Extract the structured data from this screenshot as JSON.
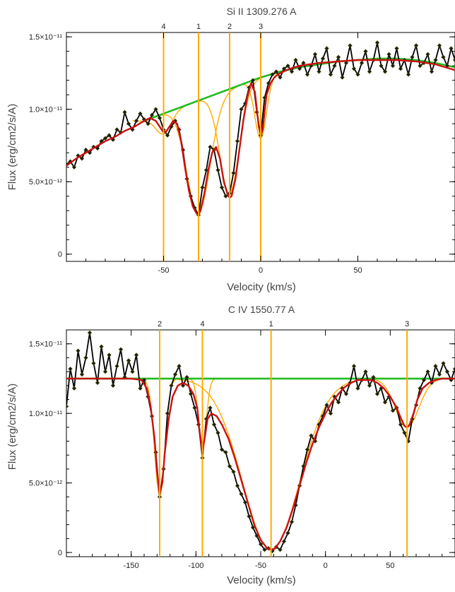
{
  "chart_data": [
    {
      "type": "line",
      "title": "Si II 1309.276 A",
      "xlabel": "Velocity (km/s)",
      "ylabel": "Flux (erg/cm2/s/A)",
      "xlim": [
        -100,
        100
      ],
      "ylim": [
        -5e-13,
        1.53e-11
      ],
      "x_ticks": [
        -50,
        0,
        50
      ],
      "x_tick_labels": [
        "-50",
        "0",
        "50"
      ],
      "y_ticks": [
        0,
        5e-12,
        1e-11,
        1.5e-11
      ],
      "y_tick_labels": [
        "0",
        "5.0×10⁻¹²",
        "1.0×10⁻¹¹",
        "1.5×10⁻¹¹"
      ],
      "components": [
        {
          "label": "4",
          "v": -50
        },
        {
          "label": "1",
          "v": -32
        },
        {
          "label": "2",
          "v": -16
        },
        {
          "label": "3",
          "v": 0
        }
      ],
      "series": [
        {
          "role": "observed",
          "color": "#000000",
          "x": [
            -100,
            -98,
            -96,
            -94,
            -92,
            -90,
            -88,
            -86,
            -84,
            -82,
            -80,
            -78,
            -76,
            -74,
            -72,
            -70,
            -68,
            -66,
            -64,
            -62,
            -60,
            -58,
            -56,
            -54,
            -52,
            -50,
            -48,
            -46,
            -44,
            -42,
            -40,
            -38,
            -36,
            -34,
            -32,
            -30,
            -28,
            -26,
            -24,
            -22,
            -20,
            -18,
            -16,
            -14,
            -12,
            -10,
            -8,
            -6,
            -4,
            -2,
            0,
            2,
            4,
            6,
            8,
            10,
            12,
            14,
            16,
            18,
            20,
            22,
            24,
            26,
            28,
            30,
            32,
            34,
            36,
            38,
            40,
            42,
            44,
            46,
            48,
            50,
            52,
            54,
            56,
            58,
            60,
            62,
            64,
            66,
            68,
            70,
            72,
            74,
            76,
            78,
            80,
            82,
            84,
            86,
            88,
            90,
            92,
            94,
            96,
            98,
            100
          ],
          "y": [
            6.2e-12,
            6.4e-12,
            6e-12,
            6.8e-12,
            6.6e-12,
            7.2e-12,
            7e-12,
            7.4e-12,
            7.3e-12,
            7.8e-12,
            8e-12,
            8.2e-12,
            7.9e-12,
            8.6e-12,
            8.4e-12,
            9.8e-12,
            9e-12,
            8.6e-12,
            9.2e-12,
            9.7e-12,
            9.3e-12,
            9e-12,
            9.6e-12,
            1e-11,
            9.4e-12,
            8.6e-12,
            8.2e-12,
            8.8e-12,
            9.2e-12,
            8.6e-12,
            7.2e-12,
            5.2e-12,
            4e-12,
            3.2e-12,
            2.7e-12,
            4.6e-12,
            5.8e-12,
            7.4e-12,
            7.2e-12,
            5.8e-12,
            4.6e-12,
            4e-12,
            4.2e-12,
            5.6e-12,
            7.8e-12,
            1e-11,
            1.04e-11,
            1.15e-11,
            1.2e-11,
            9.8e-12,
            8.2e-12,
            1.08e-11,
            1.18e-11,
            1.24e-11,
            1.26e-11,
            1.22e-11,
            1.28e-11,
            1.3e-11,
            1.26e-11,
            1.34e-11,
            1.28e-11,
            1.32e-11,
            1.24e-11,
            1.3e-11,
            1.38e-11,
            1.26e-11,
            1.35e-11,
            1.42e-11,
            1.24e-11,
            1.3e-11,
            1.36e-11,
            1.22e-11,
            1.32e-11,
            1.44e-11,
            1.28e-11,
            1.24e-11,
            1.32e-11,
            1.4e-11,
            1.26e-11,
            1.34e-11,
            1.46e-11,
            1.3e-11,
            1.26e-11,
            1.38e-11,
            1.3e-11,
            1.42e-11,
            1.28e-11,
            1.34e-11,
            1.24e-11,
            1.36e-11,
            1.44e-11,
            1.3e-11,
            1.32e-11,
            1.38e-11,
            1.26e-11,
            1.34e-11,
            1.44e-11,
            1.36e-11,
            1.3e-11,
            1.42e-11,
            1.34e-11
          ]
        },
        {
          "role": "continuum",
          "color": "#22bb22",
          "x": [
            -60,
            -50,
            -40,
            -30,
            -20,
            -10,
            0,
            10,
            20,
            30,
            40,
            50,
            60,
            70,
            80,
            90,
            100
          ],
          "y": [
            9.2e-12,
            9.7e-12,
            1.02e-11,
            1.07e-11,
            1.12e-11,
            1.17e-11,
            1.22e-11,
            1.26e-11,
            1.29e-11,
            1.31e-11,
            1.33e-11,
            1.34e-11,
            1.35e-11,
            1.35e-11,
            1.34e-11,
            1.32e-11,
            1.29e-11
          ]
        },
        {
          "role": "model",
          "color": "#cc1111",
          "x": [
            -100,
            -95,
            -90,
            -85,
            -80,
            -75,
            -70,
            -65,
            -60,
            -57,
            -54,
            -51,
            -50,
            -49,
            -47,
            -45,
            -43,
            -41,
            -39,
            -37,
            -35,
            -33,
            -32,
            -31,
            -29,
            -27,
            -25,
            -23,
            -21,
            -19,
            -17,
            -16,
            -15,
            -13,
            -11,
            -9,
            -7,
            -5,
            -3,
            -2,
            -1,
            0,
            1,
            2,
            3,
            5,
            7,
            10,
            15,
            20,
            25,
            30,
            40,
            50,
            60,
            70,
            80,
            90,
            100
          ],
          "y": [
            6.1e-12,
            6.6e-12,
            7e-12,
            7.4e-12,
            7.8e-12,
            8.1e-12,
            8.5e-12,
            8.8e-12,
            9.2e-12,
            9.4e-12,
            9.2e-12,
            8.6e-12,
            8.4e-12,
            8.4e-12,
            8.8e-12,
            9.2e-12,
            9e-12,
            7.8e-12,
            6e-12,
            4.4e-12,
            3.3e-12,
            2.8e-12,
            2.7e-12,
            3e-12,
            4.2e-12,
            5.8e-12,
            7e-12,
            7.4e-12,
            6.6e-12,
            5e-12,
            4.1e-12,
            3.9e-12,
            4e-12,
            5.2e-12,
            7.2e-12,
            9.2e-12,
            1.08e-11,
            1.18e-11,
            1.12e-11,
            1e-11,
            8.8e-12,
            8.2e-12,
            8.6e-12,
            9.8e-12,
            1.1e-11,
            1.18e-11,
            1.22e-11,
            1.25e-11,
            1.28e-11,
            1.3e-11,
            1.31e-11,
            1.32e-11,
            1.33e-11,
            1.34e-11,
            1.34e-11,
            1.34e-11,
            1.33e-11,
            1.31e-11,
            1.27e-11
          ]
        },
        {
          "role": "component-profiles",
          "color": "#ffaa00",
          "components": [
            {
              "center": -50,
              "depth": 1.4e-12,
              "width": 4
            },
            {
              "center": -32,
              "depth": 7.8e-12,
              "width": 6
            },
            {
              "center": -16,
              "depth": 7.2e-12,
              "width": 5
            },
            {
              "center": 0,
              "depth": 4.2e-12,
              "width": 3
            }
          ]
        }
      ]
    },
    {
      "type": "line",
      "title": "C IV 1550.77 A",
      "xlabel": "Velocity (km/s)",
      "ylabel": "Flux (erg/cm2/s/A)",
      "xlim": [
        -200,
        100
      ],
      "ylim": [
        -3e-13,
        1.6e-11
      ],
      "x_ticks": [
        -150,
        -100,
        -50,
        0,
        50
      ],
      "x_tick_labels": [
        "-150",
        "-100",
        "-50",
        "0",
        "50"
      ],
      "y_ticks": [
        0,
        5e-12,
        1e-11,
        1.5e-11
      ],
      "y_tick_labels": [
        "0",
        "5.0×10⁻¹²",
        "1.0×10⁻¹¹",
        "1.5×10⁻¹¹"
      ],
      "components": [
        {
          "label": "2",
          "v": -128
        },
        {
          "label": "4",
          "v": -95
        },
        {
          "label": "1",
          "v": -42
        },
        {
          "label": "3",
          "v": 63
        }
      ],
      "series": [
        {
          "role": "observed",
          "color": "#000000",
          "x": [
            -200,
            -197,
            -194,
            -191,
            -188,
            -185,
            -182,
            -179,
            -176,
            -173,
            -170,
            -167,
            -164,
            -161,
            -158,
            -155,
            -152,
            -149,
            -146,
            -143,
            -140,
            -137,
            -134,
            -131,
            -128,
            -125,
            -122,
            -119,
            -116,
            -113,
            -110,
            -107,
            -104,
            -101,
            -98,
            -95,
            -92,
            -89,
            -86,
            -83,
            -80,
            -77,
            -74,
            -71,
            -68,
            -65,
            -62,
            -59,
            -56,
            -53,
            -50,
            -47,
            -44,
            -41,
            -38,
            -35,
            -32,
            -29,
            -26,
            -23,
            -20,
            -17,
            -14,
            -11,
            -8,
            -5,
            -2,
            1,
            4,
            7,
            10,
            13,
            16,
            19,
            22,
            25,
            28,
            31,
            34,
            37,
            40,
            43,
            46,
            49,
            52,
            55,
            58,
            61,
            64,
            67,
            70,
            73,
            76,
            79,
            82,
            85,
            88,
            91,
            94,
            97,
            100
          ],
          "y": [
            1.05e-11,
            1.32e-11,
            1.18e-11,
            1.45e-11,
            1.28e-11,
            1.4e-11,
            1.58e-11,
            1.36e-11,
            1.22e-11,
            1.48e-11,
            1.3e-11,
            1.42e-11,
            1.2e-11,
            1.34e-11,
            1.46e-11,
            1.26e-11,
            1.38e-11,
            1.3e-11,
            1.42e-11,
            1.18e-11,
            1.24e-11,
            1.12e-11,
            9.8e-12,
            7.2e-12,
            4e-12,
            6e-12,
            1e-11,
            1.2e-11,
            1.28e-11,
            1.34e-11,
            1.2e-11,
            1.26e-11,
            1.14e-11,
            1.04e-11,
            9.2e-12,
            6.8e-12,
            9.6e-12,
            1.04e-11,
            9.2e-12,
            8.6e-12,
            7.4e-12,
            7.2e-12,
            6.2e-12,
            5.8e-12,
            4.8e-12,
            4.2e-12,
            3.6e-12,
            2.6e-12,
            1.8e-12,
            1.2e-12,
            6e-13,
            2e-13,
            3e-13,
            1e-13,
            4e-13,
            2e-13,
            8e-13,
            1.4e-12,
            2.2e-12,
            3.4e-12,
            4.8e-12,
            6.2e-12,
            7.4e-12,
            8.4e-12,
            8e-12,
            9.2e-12,
            9.8e-12,
            1.06e-11,
            1e-11,
            1.12e-11,
            1.08e-11,
            1.18e-11,
            1.14e-11,
            1.22e-11,
            1.34e-11,
            1.18e-11,
            1.24e-11,
            1.3e-11,
            1.2e-11,
            1.26e-11,
            1.14e-11,
            1.18e-11,
            1.08e-11,
            1.12e-11,
            1.02e-11,
            1.04e-11,
            9.2e-12,
            8.6e-12,
            8e-12,
            9.6e-12,
            1.06e-11,
            1.18e-11,
            1.24e-11,
            1.3e-11,
            1.22e-11,
            1.34e-11,
            1.28e-11,
            1.36e-11,
            1.3e-11,
            1.24e-11,
            1.32e-11
          ]
        },
        {
          "role": "continuum",
          "color": "#22bb22",
          "x": [
            -200,
            100
          ],
          "y": [
            1.25e-11,
            1.25e-11
          ]
        },
        {
          "role": "model",
          "color": "#cc1111",
          "x": [
            -200,
            -150,
            -142,
            -138,
            -135,
            -132,
            -130,
            -128,
            -126,
            -124,
            -121,
            -118,
            -114,
            -110,
            -106,
            -102,
            -99,
            -97,
            -95,
            -93,
            -91,
            -88,
            -84,
            -80,
            -75,
            -70,
            -65,
            -60,
            -55,
            -50,
            -45,
            -42,
            -39,
            -35,
            -30,
            -25,
            -20,
            -15,
            -10,
            -5,
            0,
            5,
            10,
            15,
            20,
            25,
            30,
            35,
            40,
            45,
            50,
            55,
            58,
            61,
            63,
            65,
            68,
            71,
            75,
            80,
            85,
            90,
            100
          ],
          "y": [
            1.25e-11,
            1.25e-11,
            1.24e-11,
            1.18e-11,
            1.05e-11,
            8.2e-12,
            5.8e-12,
            4.2e-12,
            5e-12,
            7.2e-12,
            9.6e-12,
            1.12e-11,
            1.2e-11,
            1.22e-11,
            1.2e-11,
            1.14e-11,
            1.04e-11,
            8.6e-12,
            7.2e-12,
            8.4e-12,
            9.6e-12,
            1e-11,
            9.8e-12,
            9.2e-12,
            8.2e-12,
            6.8e-12,
            5.2e-12,
            3.6e-12,
            2e-12,
            9e-13,
            3e-13,
            2e-13,
            3e-13,
            8e-13,
            1.8e-12,
            3.2e-12,
            4.8e-12,
            6.4e-12,
            7.8e-12,
            9e-12,
            1e-11,
            1.08e-11,
            1.14e-11,
            1.19e-11,
            1.22e-11,
            1.24e-11,
            1.24e-11,
            1.24e-11,
            1.22e-11,
            1.18e-11,
            1.12e-11,
            1.04e-11,
            9.7e-12,
            9.1e-12,
            9e-12,
            9.2e-12,
            1e-11,
            1.1e-11,
            1.18e-11,
            1.22e-11,
            1.24e-11,
            1.25e-11,
            1.25e-11
          ]
        },
        {
          "role": "component-profiles",
          "color": "#ffaa00",
          "components": [
            {
              "center": -128,
              "depth": 8.4e-12,
              "width": 4
            },
            {
              "center": -95,
              "depth": 5e-12,
              "width": 3
            },
            {
              "center": -42,
              "depth": 1.23e-11,
              "width": 22
            },
            {
              "center": 63,
              "depth": 3.5e-12,
              "width": 9
            }
          ]
        }
      ]
    }
  ]
}
